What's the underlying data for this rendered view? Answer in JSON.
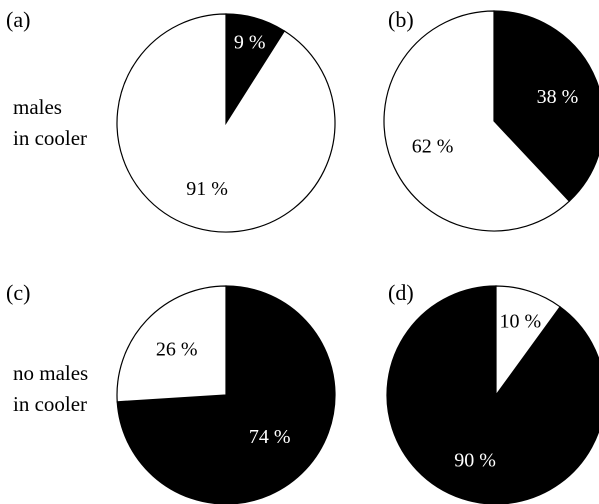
{
  "figure": {
    "row_labels": [
      [
        "males",
        "in cooler"
      ],
      [
        "no males",
        "in cooler"
      ]
    ]
  },
  "chart_data": [
    {
      "type": "pie",
      "panel": "(a)",
      "row": "males in cooler",
      "slices": [
        {
          "value": 9,
          "label": "9 %",
          "color": "#000000"
        },
        {
          "value": 91,
          "label": "91 %",
          "color": "#ffffff"
        }
      ]
    },
    {
      "type": "pie",
      "panel": "(b)",
      "row": "males in cooler",
      "slices": [
        {
          "value": 38,
          "label": "38 %",
          "color": "#000000"
        },
        {
          "value": 62,
          "label": "62 %",
          "color": "#ffffff"
        }
      ]
    },
    {
      "type": "pie",
      "panel": "(c)",
      "row": "no males in cooler",
      "slices": [
        {
          "value": 74,
          "label": "74 %",
          "color": "#000000"
        },
        {
          "value": 26,
          "label": "26 %",
          "color": "#ffffff"
        }
      ]
    },
    {
      "type": "pie",
      "panel": "(d)",
      "row": "no males in cooler",
      "slices": [
        {
          "value": 90,
          "label": "90 %",
          "color": "#000000"
        },
        {
          "value": 10,
          "label": "10 %",
          "color": "#ffffff"
        }
      ]
    }
  ]
}
